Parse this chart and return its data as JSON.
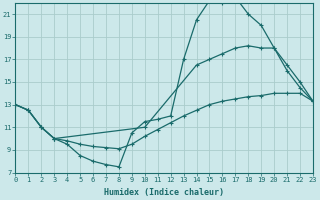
{
  "xlabel": "Humidex (Indice chaleur)",
  "bg_color": "#cce8ea",
  "grid_color": "#aacccc",
  "line_color": "#1a6b6b",
  "xlim": [
    0,
    23
  ],
  "ylim": [
    7,
    22
  ],
  "yticks": [
    7,
    9,
    11,
    13,
    15,
    17,
    19,
    21
  ],
  "xticks": [
    0,
    1,
    2,
    3,
    4,
    5,
    6,
    7,
    8,
    9,
    10,
    11,
    12,
    13,
    14,
    15,
    16,
    17,
    18,
    19,
    20,
    21,
    22,
    23
  ],
  "curve1_x": [
    0,
    1,
    2,
    3,
    4,
    5,
    6,
    7,
    8,
    9,
    10,
    11,
    12,
    13,
    14,
    15,
    16,
    17,
    18,
    19,
    20,
    21,
    22,
    23
  ],
  "curve1_y": [
    13.0,
    12.5,
    11.0,
    10.0,
    9.5,
    8.5,
    8.0,
    7.7,
    7.5,
    10.5,
    11.5,
    11.7,
    12.0,
    17.0,
    20.5,
    22.2,
    22.0,
    22.5,
    21.0,
    20.0,
    18.0,
    16.0,
    14.5,
    13.3
  ],
  "curve2_x": [
    0,
    1,
    2,
    3,
    4,
    5,
    6,
    7,
    8,
    9,
    10,
    11,
    12,
    13,
    14,
    15,
    16,
    17,
    18,
    19,
    20,
    21,
    22,
    23
  ],
  "curve2_y": [
    13.0,
    12.5,
    11.0,
    10.0,
    9.8,
    9.5,
    9.3,
    9.2,
    9.1,
    9.5,
    10.2,
    10.8,
    11.4,
    12.0,
    12.5,
    13.0,
    13.3,
    13.5,
    13.7,
    13.8,
    14.0,
    14.0,
    14.0,
    13.3
  ],
  "curve3_x": [
    0,
    1,
    2,
    3,
    10,
    14,
    15,
    16,
    17,
    18,
    19,
    20,
    21,
    22,
    23
  ],
  "curve3_y": [
    13.0,
    12.5,
    11.0,
    10.0,
    11.0,
    16.5,
    17.0,
    17.5,
    18.0,
    18.2,
    18.0,
    18.0,
    16.5,
    15.0,
    13.3
  ]
}
